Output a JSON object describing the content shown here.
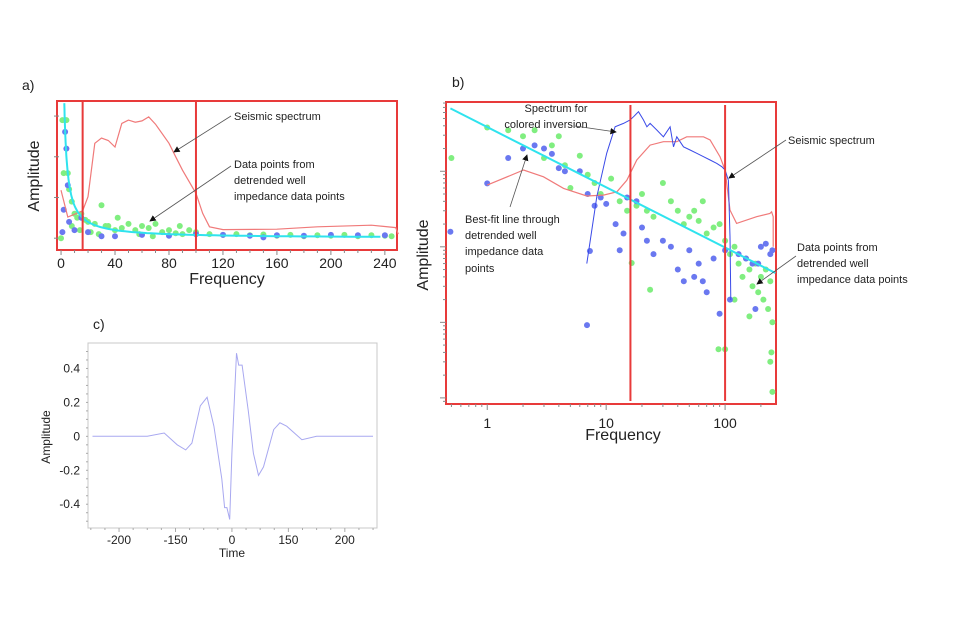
{
  "colors": {
    "frame_red": "#e83a3a",
    "seismic_red": "#f07a7a",
    "blue_points": "#6a78f0",
    "green_points": "#80ee80",
    "best_fit_cyan": "#2fe3ee",
    "inversion_blue": "#3a4ae8",
    "wavelet": "#a8a8f0"
  },
  "chart_data": [
    {
      "panel_label": "a)",
      "type": "scatter",
      "xlabel": "Frequency",
      "ylabel": "Amplitude",
      "xlim": [
        -3,
        249
      ],
      "ylim": [
        -0.29,
        3.37
      ],
      "x_scale": "linear",
      "y_scale": "linear",
      "x_tick_labels": [
        "0",
        "40",
        "80",
        "120",
        "160",
        "200",
        "240"
      ],
      "x_tick_values": [
        0,
        40,
        80,
        120,
        160,
        200,
        240
      ],
      "y_ticks_unlabeled": [
        0,
        1,
        2,
        3
      ],
      "vertical_lines": [
        16,
        100
      ],
      "annotations": {
        "seismic": [
          "Seismic spectrum"
        ],
        "points": [
          "Data points from",
          "detrended well",
          "impedance data points"
        ]
      },
      "seismic_spectrum": [
        [
          0,
          1.18
        ],
        [
          5,
          0.52
        ],
        [
          16,
          0.67
        ],
        [
          20,
          1.02
        ],
        [
          25,
          2.33
        ],
        [
          30,
          2.46
        ],
        [
          35,
          2.4
        ],
        [
          40,
          2.24
        ],
        [
          45,
          2.82
        ],
        [
          50,
          2.9
        ],
        [
          55,
          2.85
        ],
        [
          60,
          2.88
        ],
        [
          65,
          2.98
        ],
        [
          70,
          2.8
        ],
        [
          80,
          2.33
        ],
        [
          85,
          2.0
        ],
        [
          90,
          1.67
        ],
        [
          100,
          1.1
        ],
        [
          105,
          0.61
        ],
        [
          110,
          0.28
        ],
        [
          120,
          0.21
        ],
        [
          160,
          0.22
        ],
        [
          190,
          0.28
        ],
        [
          230,
          0.32
        ],
        [
          248,
          0.26
        ],
        [
          250,
          0.1
        ]
      ],
      "best_fit": {
        "form": "k/f",
        "k": 8
      },
      "green_points": [
        [
          1,
          2.9
        ],
        [
          3,
          2.9
        ],
        [
          4,
          2.9
        ],
        [
          2,
          1.6
        ],
        [
          5,
          1.6
        ],
        [
          6,
          1.2
        ],
        [
          8,
          0.9
        ],
        [
          10,
          0.6
        ],
        [
          12,
          0.5
        ],
        [
          15,
          0.6
        ],
        [
          18,
          0.45
        ],
        [
          20,
          0.4
        ],
        [
          25,
          0.35
        ],
        [
          30,
          0.81
        ],
        [
          33,
          0.3
        ],
        [
          35,
          0.3
        ],
        [
          40,
          0.2
        ],
        [
          45,
          0.25
        ],
        [
          50,
          0.35
        ],
        [
          55,
          0.2
        ],
        [
          60,
          0.3
        ],
        [
          65,
          0.25
        ],
        [
          70,
          0.35
        ],
        [
          75,
          0.15
        ],
        [
          80,
          0.2
        ],
        [
          85,
          0.12
        ],
        [
          90,
          0.1
        ],
        [
          95,
          0.2
        ],
        [
          100,
          0.15
        ],
        [
          110,
          0.1
        ],
        [
          120,
          0.08
        ],
        [
          130,
          0.1
        ],
        [
          140,
          0.07
        ],
        [
          150,
          0.09
        ],
        [
          160,
          0.06
        ],
        [
          170,
          0.08
        ],
        [
          180,
          0.05
        ],
        [
          190,
          0.07
        ],
        [
          200,
          0.06
        ],
        [
          210,
          0.08
        ],
        [
          220,
          0.05
        ],
        [
          230,
          0.07
        ],
        [
          240,
          0.06
        ],
        [
          245,
          0.05
        ],
        [
          0,
          0.0
        ],
        [
          8,
          0.3
        ],
        [
          14,
          0.2
        ],
        [
          22,
          0.15
        ],
        [
          28,
          0.1
        ],
        [
          42,
          0.5
        ],
        [
          58,
          0.1
        ],
        [
          68,
          0.05
        ],
        [
          88,
          0.3
        ]
      ],
      "blue_points": [
        [
          3,
          2.61
        ],
        [
          4,
          2.2
        ],
        [
          2,
          0.7
        ],
        [
          5,
          1.3
        ],
        [
          1,
          0.15
        ],
        [
          6,
          0.4
        ],
        [
          10,
          0.2
        ],
        [
          15,
          0.5
        ],
        [
          20,
          0.15
        ],
        [
          30,
          0.05
        ],
        [
          40,
          0.05
        ],
        [
          60,
          0.08
        ],
        [
          80,
          0.06
        ],
        [
          100,
          0.1
        ],
        [
          120,
          0.08
        ],
        [
          140,
          0.06
        ],
        [
          150,
          0.02
        ],
        [
          160,
          0.07
        ],
        [
          180,
          0.06
        ],
        [
          200,
          0.08
        ],
        [
          220,
          0.07
        ],
        [
          240,
          0.07
        ]
      ]
    },
    {
      "panel_label": "b)",
      "type": "scatter",
      "xlabel": "Frequency",
      "ylabel": "Amplitude",
      "xlim": [
        0.45,
        268
      ],
      "ylim": [
        0.0083,
        82.6
      ],
      "x_scale": "log",
      "y_scale": "log",
      "x_tick_labels": [
        "1",
        "10",
        "100"
      ],
      "x_tick_values": [
        1,
        10,
        100
      ],
      "y_ticks_unlabeled": [
        0.01,
        0.1,
        1,
        10
      ],
      "vertical_lines": [
        16,
        100
      ],
      "annotations": {
        "inversion": [
          "Spectrum for",
          "colored inversion"
        ],
        "best_fit": [
          "Best-fit line through",
          "detrended well",
          "impedance data",
          "points"
        ],
        "seismic": [
          "Seismic spectrum"
        ],
        "points": [
          "Data points from",
          "detrended well",
          "impedance data points"
        ]
      },
      "best_fit": [
        [
          0.49,
          68
        ],
        [
          265,
          0.45
        ]
      ],
      "colored_inversion_spectrum": [
        [
          6.88,
          0.6
        ],
        [
          8.35,
          4.6
        ],
        [
          10.1,
          17.3
        ],
        [
          11.9,
          38.8
        ],
        [
          14.0,
          43
        ],
        [
          15.9,
          47.7
        ],
        [
          17.0,
          52.7
        ],
        [
          18.7,
          61.4
        ],
        [
          20.6,
          47.7
        ],
        [
          22.0,
          38.8
        ],
        [
          23.4,
          43
        ],
        [
          26.7,
          35.1
        ],
        [
          30.3,
          28.6
        ],
        [
          34.5,
          38.8
        ],
        [
          36.8,
          21.1
        ],
        [
          39.3,
          28.6
        ],
        [
          44.7,
          21.1
        ],
        [
          50.8,
          19.1
        ],
        [
          57.8,
          17.3
        ],
        [
          65.8,
          15.6
        ],
        [
          74.8,
          14.1
        ],
        [
          85.1,
          12.7
        ],
        [
          93.8,
          11.5
        ],
        [
          100,
          10.4
        ],
        [
          106.7,
          7.6
        ],
        [
          110,
          1.36
        ],
        [
          111.6,
          0.197
        ]
      ],
      "seismic_spectrum": [
        [
          1.0,
          6.56
        ],
        [
          2.02,
          10.4
        ],
        [
          2.97,
          8.45
        ],
        [
          4.39,
          5.94
        ],
        [
          6.88,
          4.7
        ],
        [
          9.5,
          4.84
        ],
        [
          12.3,
          5.35
        ],
        [
          14.9,
          7.6
        ],
        [
          18.1,
          14.1
        ],
        [
          23.4,
          22.2
        ],
        [
          30.3,
          24.6
        ],
        [
          39.3,
          24.6
        ],
        [
          47.6,
          28.6
        ],
        [
          65.8,
          28.6
        ],
        [
          74.8,
          25.9
        ],
        [
          90.6,
          15.6
        ],
        [
          100,
          10.4
        ],
        [
          110,
          3.06
        ],
        [
          125,
          2.04
        ],
        [
          184,
          2.5
        ],
        [
          238,
          2.77
        ],
        [
          246,
          2.91
        ],
        [
          254,
          2.5
        ],
        [
          254,
          1.0
        ]
      ],
      "green_points": [
        [
          0.5,
          15
        ],
        [
          1,
          38
        ],
        [
          1.5,
          35
        ],
        [
          2,
          29
        ],
        [
          2.5,
          35
        ],
        [
          3,
          15
        ],
        [
          3.5,
          22
        ],
        [
          4,
          29
        ],
        [
          4.5,
          12
        ],
        [
          5,
          6
        ],
        [
          6,
          16
        ],
        [
          7,
          9
        ],
        [
          8,
          7
        ],
        [
          9,
          5
        ],
        [
          11,
          8
        ],
        [
          13,
          4
        ],
        [
          15,
          3
        ],
        [
          16.4,
          0.61
        ],
        [
          18,
          3.5
        ],
        [
          20,
          5
        ],
        [
          22,
          3
        ],
        [
          23.4,
          0.27
        ],
        [
          25,
          2.5
        ],
        [
          30,
          7
        ],
        [
          35,
          4
        ],
        [
          40,
          3
        ],
        [
          45,
          2
        ],
        [
          50,
          2.5
        ],
        [
          55,
          3
        ],
        [
          60,
          2.2
        ],
        [
          65,
          4
        ],
        [
          70,
          1.5
        ],
        [
          80,
          1.8
        ],
        [
          88,
          0.044
        ],
        [
          90,
          2
        ],
        [
          100,
          1.2
        ],
        [
          100,
          0.044
        ],
        [
          110,
          0.8
        ],
        [
          120,
          1.0
        ],
        [
          120,
          0.2
        ],
        [
          130,
          0.6
        ],
        [
          140,
          0.4
        ],
        [
          150,
          0.7
        ],
        [
          160,
          0.5
        ],
        [
          160,
          0.12
        ],
        [
          170,
          0.3
        ],
        [
          180,
          0.6
        ],
        [
          190,
          0.25
        ],
        [
          200,
          0.4
        ],
        [
          210,
          0.2
        ],
        [
          220,
          0.5
        ],
        [
          230,
          0.15
        ],
        [
          240,
          0.35
        ],
        [
          240,
          0.03
        ],
        [
          245,
          0.04
        ],
        [
          250,
          0.012
        ],
        [
          250,
          0.1
        ]
      ],
      "blue_points": [
        [
          0.49,
          1.58
        ],
        [
          1,
          6.9
        ],
        [
          1.5,
          15
        ],
        [
          2,
          20
        ],
        [
          2.5,
          22
        ],
        [
          3,
          20
        ],
        [
          3.5,
          17
        ],
        [
          4,
          11
        ],
        [
          4.5,
          10
        ],
        [
          6,
          10
        ],
        [
          7,
          5
        ],
        [
          6.9,
          0.092
        ],
        [
          7.3,
          0.88
        ],
        [
          8,
          3.5
        ],
        [
          9,
          4.5
        ],
        [
          10,
          3.7
        ],
        [
          12,
          2
        ],
        [
          13,
          0.9
        ],
        [
          14,
          1.5
        ],
        [
          15,
          4.5
        ],
        [
          18,
          4
        ],
        [
          20,
          1.8
        ],
        [
          22,
          1.2
        ],
        [
          25,
          0.8
        ],
        [
          30,
          1.2
        ],
        [
          35,
          1.0
        ],
        [
          40,
          0.5
        ],
        [
          45,
          0.35
        ],
        [
          50,
          0.9
        ],
        [
          55,
          0.4
        ],
        [
          60,
          0.6
        ],
        [
          65,
          0.35
        ],
        [
          70,
          0.25
        ],
        [
          80,
          0.7
        ],
        [
          90,
          0.13
        ],
        [
          100,
          0.9
        ],
        [
          110,
          0.2
        ],
        [
          130,
          0.8
        ],
        [
          150,
          0.7
        ],
        [
          170,
          0.6
        ],
        [
          180,
          0.15
        ],
        [
          190,
          0.6
        ],
        [
          200,
          1.0
        ],
        [
          220,
          1.1
        ],
        [
          240,
          0.8
        ],
        [
          250,
          0.9
        ]
      ]
    },
    {
      "panel_label": "c)",
      "type": "line",
      "xlabel": "Time",
      "ylabel": "Amplitude",
      "xlim": [
        -255,
        257
      ],
      "ylim": [
        -0.54,
        0.55
      ],
      "x_tick_labels": [
        "-200",
        "-150",
        "0",
        "150",
        "200"
      ],
      "y_tick_labels": [
        "0.4",
        "0.2",
        "0",
        "-0.2",
        "-0.4"
      ],
      "y_tick_values": [
        0.4,
        0.2,
        0,
        -0.2,
        -0.4
      ],
      "wavelet": [
        [
          -247,
          0
        ],
        [
          -150,
          0
        ],
        [
          -120,
          0.02
        ],
        [
          -97,
          -0.05
        ],
        [
          -82,
          -0.08
        ],
        [
          -71,
          -0.04
        ],
        [
          -56,
          0.18
        ],
        [
          -44,
          0.23
        ],
        [
          -32,
          0.06
        ],
        [
          -18,
          -0.25
        ],
        [
          -13,
          -0.42
        ],
        [
          -9,
          -0.42
        ],
        [
          -4,
          -0.49
        ],
        [
          0,
          -0.1
        ],
        [
          8,
          0.49
        ],
        [
          12,
          0.42
        ],
        [
          18,
          0.42
        ],
        [
          29,
          0.15
        ],
        [
          38,
          -0.1
        ],
        [
          47,
          -0.23
        ],
        [
          56,
          -0.18
        ],
        [
          74,
          0.04
        ],
        [
          85,
          0.08
        ],
        [
          97,
          0.06
        ],
        [
          124,
          -0.02
        ],
        [
          150,
          0
        ],
        [
          250,
          0
        ]
      ]
    }
  ]
}
